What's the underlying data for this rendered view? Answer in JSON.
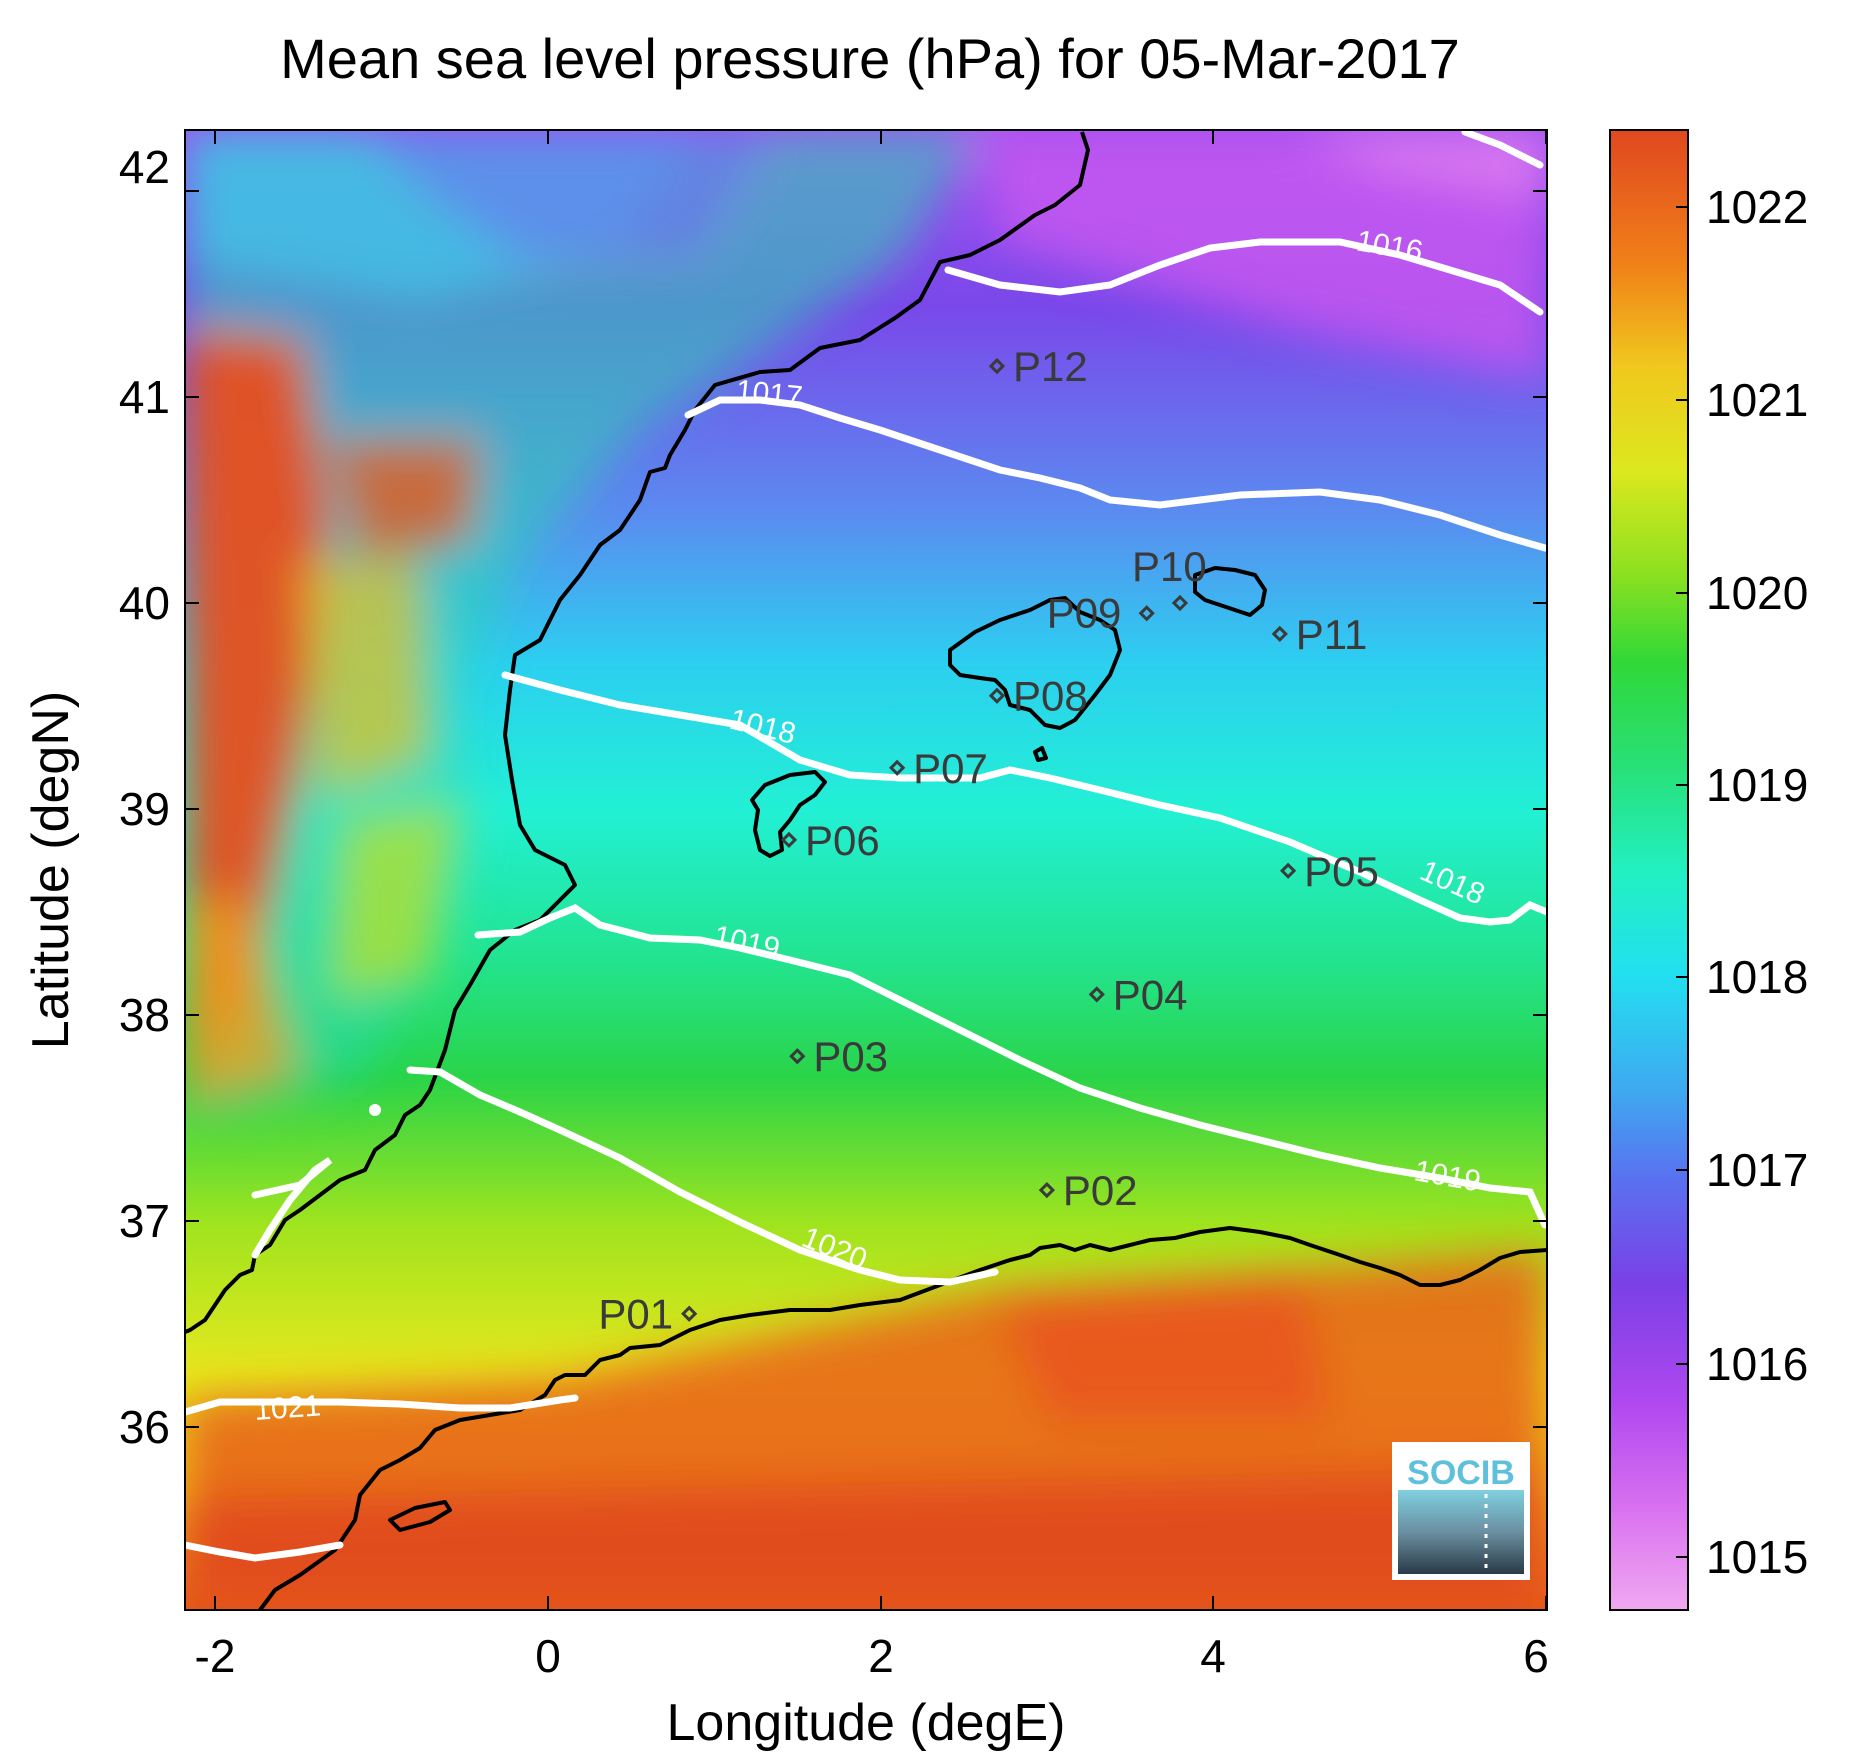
{
  "title": "Mean sea level pressure (hPa) for 05-Mar-2017",
  "x_axis": {
    "label": "Longitude (degE)",
    "ticks": [
      "-2",
      "0",
      "2",
      "4",
      "6"
    ]
  },
  "y_axis": {
    "label": "Latitude (degN)",
    "ticks": [
      "36",
      "37",
      "38",
      "39",
      "40",
      "41",
      "42"
    ]
  },
  "colorbar": {
    "ticks": [
      "1015",
      "1016",
      "1017",
      "1018",
      "1019",
      "1020",
      "1021",
      "1022"
    ],
    "colormap": [
      "#f0a8f0",
      "#c050f0",
      "#7a40e6",
      "#3f8ef0",
      "#22d6f0",
      "#22f0c8",
      "#28d840",
      "#a8e81e",
      "#f0e81e",
      "#f0b41e",
      "#f06a10",
      "#e04820"
    ]
  },
  "contours": [
    {
      "level": "1016",
      "label": "1016"
    },
    {
      "level": "1017",
      "label": "1017"
    },
    {
      "level": "1018",
      "label": "1018",
      "label2": "1018"
    },
    {
      "level": "1019",
      "label": "1019",
      "label2": "1019"
    },
    {
      "level": "1020",
      "label": "1020"
    },
    {
      "level": "1021",
      "label": "1021"
    }
  ],
  "stations": [
    {
      "id": "P01",
      "lon": 0.85,
      "lat": 36.55
    },
    {
      "id": "P02",
      "lon": 3.0,
      "lat": 37.15
    },
    {
      "id": "P03",
      "lon": 1.5,
      "lat": 37.8
    },
    {
      "id": "P04",
      "lon": 3.3,
      "lat": 38.1
    },
    {
      "id": "P05",
      "lon": 4.45,
      "lat": 38.7
    },
    {
      "id": "P06",
      "lon": 1.45,
      "lat": 38.85
    },
    {
      "id": "P07",
      "lon": 2.1,
      "lat": 39.2
    },
    {
      "id": "P08",
      "lon": 2.7,
      "lat": 39.55
    },
    {
      "id": "P09",
      "lon": 3.6,
      "lat": 39.95
    },
    {
      "id": "P10",
      "lon": 3.8,
      "lat": 40.0
    },
    {
      "id": "P11",
      "lon": 4.4,
      "lat": 39.85
    },
    {
      "id": "P12",
      "lon": 2.7,
      "lat": 41.15
    }
  ],
  "logo": {
    "text": "SOCIB"
  },
  "colors": {
    "coastline": "#000000",
    "contour": "#ffffff",
    "station": "#3a3a3a"
  }
}
